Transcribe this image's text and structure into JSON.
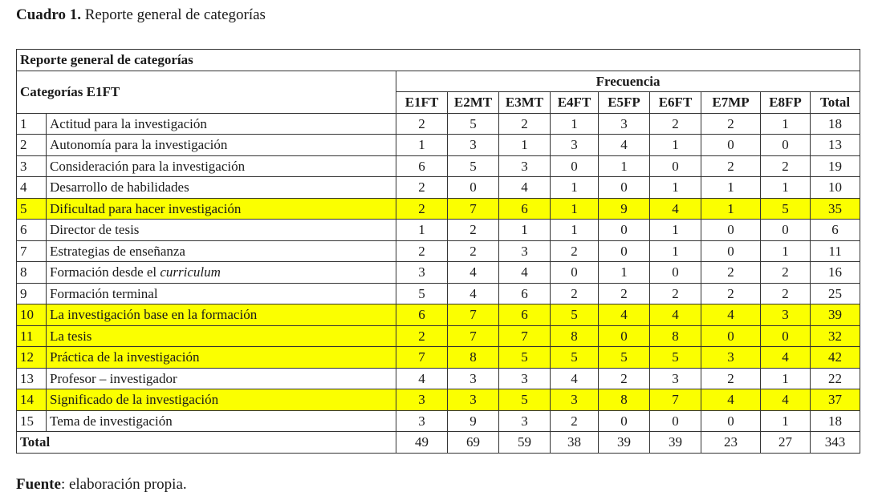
{
  "caption": {
    "label": "Cuadro 1.",
    "text": " Reporte general de categorías"
  },
  "table": {
    "title": "Reporte general de categorías",
    "category_header": "Categorías E1FT",
    "frequency_header": "Frecuencia",
    "columns": [
      "E1FT",
      "E2MT",
      "E3MT",
      "E4FT",
      "E5FP",
      "E6FT",
      "E7MP",
      "E8FP",
      "Total"
    ],
    "rows": [
      {
        "n": "1",
        "name": "Actitud para la investigación",
        "values": [
          "2",
          "5",
          "2",
          "1",
          "3",
          "2",
          "2",
          "1",
          "18"
        ],
        "highlight": false
      },
      {
        "n": "2",
        "name": "Autonomía para la investigación",
        "values": [
          "1",
          "3",
          "1",
          "3",
          "4",
          "1",
          "0",
          "0",
          "13"
        ],
        "highlight": false
      },
      {
        "n": "3",
        "name": "Consideración para la investigación",
        "values": [
          "6",
          "5",
          "3",
          "0",
          "1",
          "0",
          "2",
          "2",
          "19"
        ],
        "highlight": false
      },
      {
        "n": "4",
        "name": "Desarrollo de habilidades",
        "values": [
          "2",
          "0",
          "4",
          "1",
          "0",
          "1",
          "1",
          "1",
          "10"
        ],
        "highlight": false
      },
      {
        "n": "5",
        "name": "Dificultad para hacer investigación",
        "values": [
          "2",
          "7",
          "6",
          "1",
          "9",
          "4",
          "1",
          "5",
          "35"
        ],
        "highlight": true
      },
      {
        "n": "6",
        "name": "Director de tesis",
        "values": [
          "1",
          "2",
          "1",
          "1",
          "0",
          "1",
          "0",
          "0",
          "6"
        ],
        "highlight": false
      },
      {
        "n": "7",
        "name": "Estrategias de enseñanza",
        "values": [
          "2",
          "2",
          "3",
          "2",
          "0",
          "1",
          "0",
          "1",
          "11"
        ],
        "highlight": false
      },
      {
        "n": "8",
        "name": "Formación desde el ",
        "name_italic": "curriculum",
        "values": [
          "3",
          "4",
          "4",
          "0",
          "1",
          "0",
          "2",
          "2",
          "16"
        ],
        "highlight": false
      },
      {
        "n": "9",
        "name": "Formación terminal",
        "values": [
          "5",
          "4",
          "6",
          "2",
          "2",
          "2",
          "2",
          "2",
          "25"
        ],
        "highlight": false
      },
      {
        "n": "10",
        "name": "La investigación base en la formación",
        "values": [
          "6",
          "7",
          "6",
          "5",
          "4",
          "4",
          "4",
          "3",
          "39"
        ],
        "highlight": true
      },
      {
        "n": "11",
        "name": "La tesis",
        "values": [
          "2",
          "7",
          "7",
          "8",
          "0",
          "8",
          "0",
          "0",
          "32"
        ],
        "highlight": true
      },
      {
        "n": "12",
        "name": "Práctica de la investigación",
        "values": [
          "7",
          "8",
          "5",
          "5",
          "5",
          "5",
          "3",
          "4",
          "42"
        ],
        "highlight": true
      },
      {
        "n": "13",
        "name": "Profesor – investigador",
        "values": [
          "4",
          "3",
          "3",
          "4",
          "2",
          "3",
          "2",
          "1",
          "22"
        ],
        "highlight": false
      },
      {
        "n": "14",
        "name": "Significado de la investigación",
        "values": [
          "3",
          "3",
          "5",
          "3",
          "8",
          "7",
          "4",
          "4",
          "37"
        ],
        "highlight": true
      },
      {
        "n": "15",
        "name": "Tema de investigación",
        "values": [
          "3",
          "9",
          "3",
          "2",
          "0",
          "0",
          "0",
          "1",
          "18"
        ],
        "highlight": false
      }
    ],
    "total_label": "Total",
    "totals": [
      "49",
      "69",
      "59",
      "38",
      "39",
      "39",
      "23",
      "27",
      "343"
    ],
    "highlight_color": "#fbff00"
  },
  "source": {
    "label": "Fuente",
    "text": ": elaboración propia."
  }
}
